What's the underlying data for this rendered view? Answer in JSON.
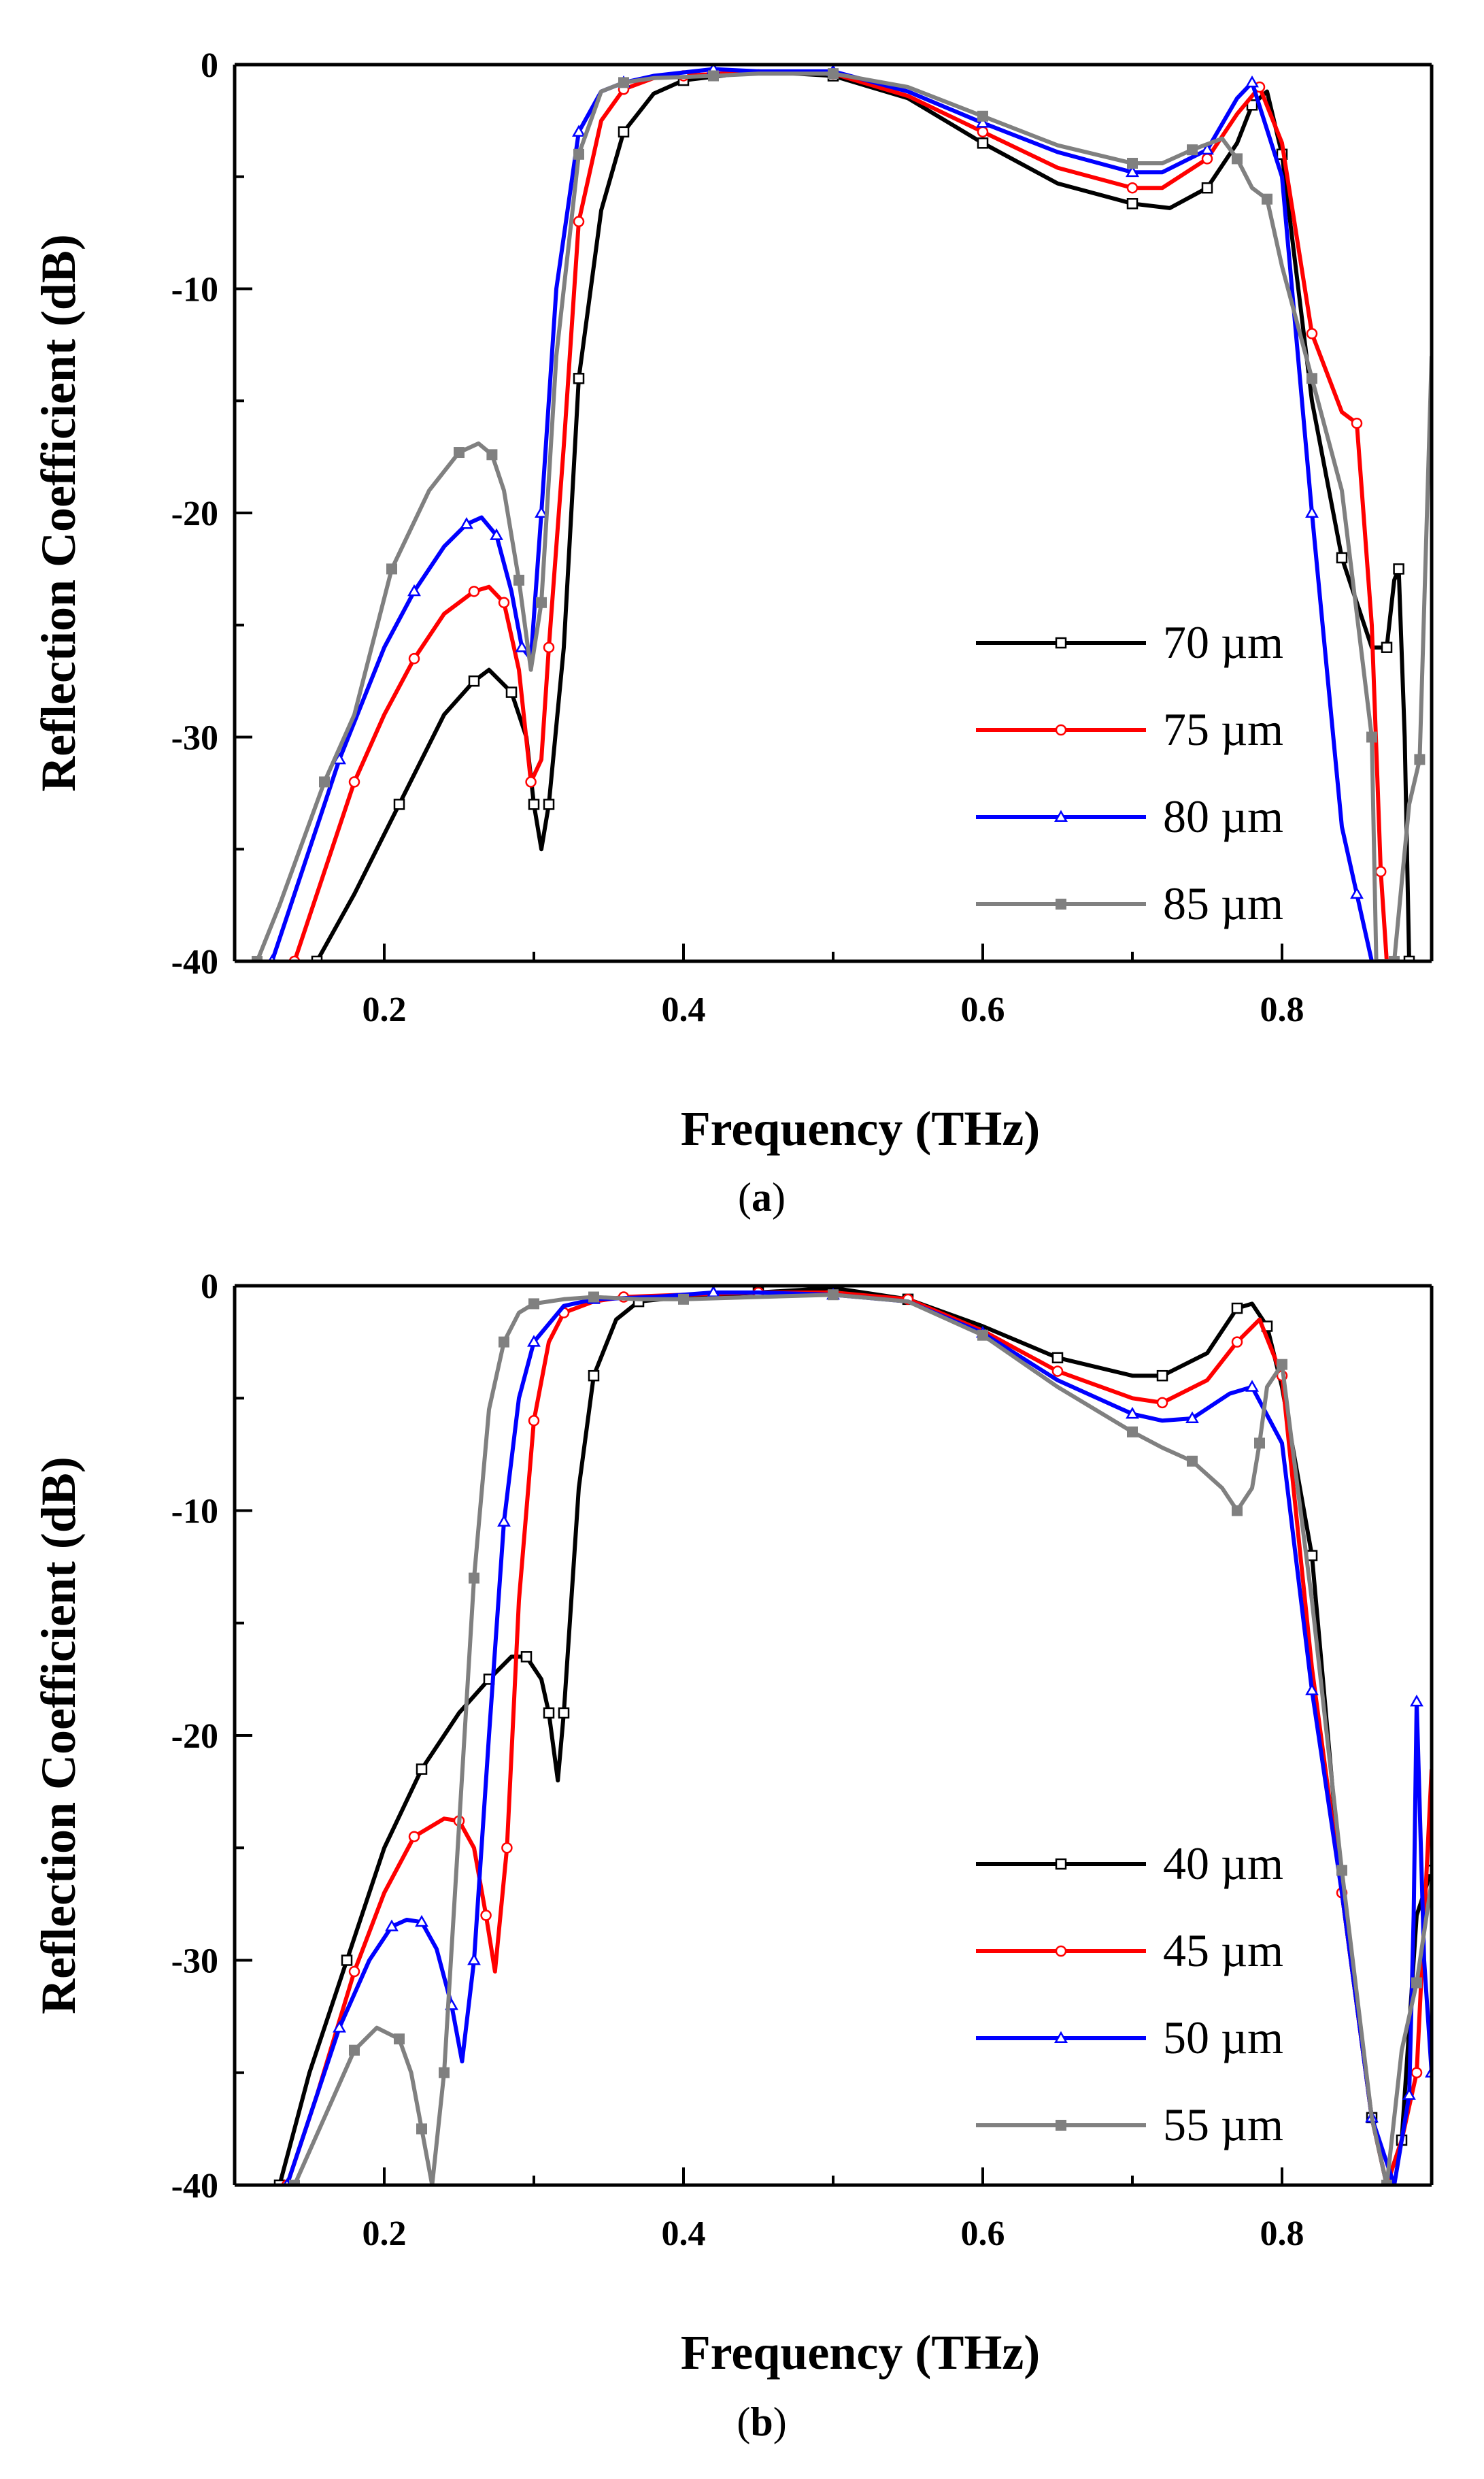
{
  "colors": {
    "black": "#000000",
    "red": "#ff0000",
    "blue": "#0000ff",
    "gray": "#808080"
  },
  "chart_data": [
    {
      "type": "line",
      "label_open": "(",
      "label_letter": "a",
      "label_close": ")",
      "xlabel": "Frequency (THz)",
      "ylabel": "Reflection Coefficient (dB)",
      "xlim": [
        0.1,
        0.9
      ],
      "ylim": [
        -40,
        0
      ],
      "xticks": [
        0.2,
        0.4,
        0.6,
        0.8
      ],
      "yticks": [
        0,
        -10,
        -20,
        -30,
        -40
      ],
      "grid": false,
      "legend_position": "bottom-right",
      "series": [
        {
          "name": "70 µm",
          "color": "#000000",
          "marker": "open-square",
          "x": [
            0.155,
            0.18,
            0.21,
            0.24,
            0.26,
            0.27,
            0.285,
            0.295,
            0.3,
            0.305,
            0.31,
            0.32,
            0.33,
            0.345,
            0.36,
            0.38,
            0.4,
            0.45,
            0.5,
            0.55,
            0.6,
            0.65,
            0.7,
            0.725,
            0.75,
            0.77,
            0.78,
            0.79,
            0.8,
            0.82,
            0.84,
            0.86,
            0.87,
            0.875,
            0.878,
            0.882,
            0.885
          ],
          "y": [
            -40,
            -37,
            -33,
            -29,
            -27.5,
            -27,
            -28,
            -30,
            -33,
            -35,
            -33,
            -26,
            -14,
            -6.5,
            -3,
            -1.3,
            -0.7,
            -0.3,
            -0.5,
            -1.5,
            -3.5,
            -5.3,
            -6.2,
            -6.4,
            -5.5,
            -3.5,
            -1.8,
            -1.2,
            -4,
            -15,
            -22,
            -26,
            -26,
            -23,
            -22.5,
            -30,
            -40
          ]
        },
        {
          "name": "75 µm",
          "color": "#ff0000",
          "marker": "open-circle",
          "x": [
            0.14,
            0.16,
            0.18,
            0.2,
            0.22,
            0.24,
            0.26,
            0.27,
            0.28,
            0.29,
            0.298,
            0.305,
            0.31,
            0.32,
            0.33,
            0.345,
            0.36,
            0.38,
            0.4,
            0.45,
            0.5,
            0.55,
            0.6,
            0.65,
            0.7,
            0.72,
            0.75,
            0.77,
            0.785,
            0.8,
            0.82,
            0.84,
            0.85,
            0.86,
            0.866,
            0.87
          ],
          "y": [
            -40,
            -36,
            -32,
            -29,
            -26.5,
            -24.5,
            -23.5,
            -23.3,
            -24,
            -27,
            -32,
            -31,
            -26,
            -17,
            -7,
            -2.5,
            -1.1,
            -0.6,
            -0.5,
            -0.3,
            -0.4,
            -1.4,
            -3,
            -4.6,
            -5.5,
            -5.5,
            -4.2,
            -2.2,
            -1,
            -3.5,
            -12,
            -15.5,
            -16,
            -25,
            -36,
            -40
          ]
        },
        {
          "name": "80 µm",
          "color": "#0000ff",
          "marker": "open-triangle",
          "x": [
            0.125,
            0.15,
            0.17,
            0.2,
            0.22,
            0.24,
            0.255,
            0.265,
            0.275,
            0.285,
            0.292,
            0.298,
            0.305,
            0.315,
            0.33,
            0.345,
            0.36,
            0.38,
            0.42,
            0.45,
            0.5,
            0.55,
            0.6,
            0.65,
            0.7,
            0.72,
            0.75,
            0.77,
            0.78,
            0.8,
            0.82,
            0.84,
            0.85,
            0.86
          ],
          "y": [
            -40,
            -35,
            -31,
            -26,
            -23.5,
            -21.5,
            -20.5,
            -20.2,
            -21,
            -23.5,
            -26,
            -26.5,
            -20,
            -10,
            -3,
            -1.2,
            -0.8,
            -0.5,
            -0.2,
            -0.3,
            -0.3,
            -1.2,
            -2.6,
            -3.9,
            -4.8,
            -4.8,
            -3.8,
            -1.5,
            -0.8,
            -5,
            -20,
            -34,
            -37,
            -40
          ]
        },
        {
          "name": "85 µm",
          "color": "#808080",
          "marker": "filled-square",
          "x": [
            0.115,
            0.13,
            0.16,
            0.18,
            0.205,
            0.23,
            0.25,
            0.263,
            0.272,
            0.28,
            0.29,
            0.298,
            0.305,
            0.315,
            0.33,
            0.345,
            0.36,
            0.38,
            0.42,
            0.45,
            0.5,
            0.55,
            0.6,
            0.65,
            0.7,
            0.72,
            0.74,
            0.76,
            0.77,
            0.78,
            0.79,
            0.8,
            0.82,
            0.84,
            0.86,
            0.863,
            0.875,
            0.885,
            0.892,
            0.9
          ],
          "y": [
            -40,
            -37.5,
            -32,
            -29,
            -22.5,
            -19,
            -17.3,
            -16.9,
            -17.4,
            -19,
            -23,
            -27,
            -24,
            -13,
            -4,
            -1.2,
            -0.8,
            -0.6,
            -0.5,
            -0.4,
            -0.4,
            -1,
            -2.3,
            -3.6,
            -4.4,
            -4.4,
            -3.8,
            -3.3,
            -4.2,
            -5.5,
            -6,
            -9,
            -14,
            -19,
            -30,
            -40,
            -40,
            -33,
            -31,
            -13
          ]
        }
      ]
    },
    {
      "type": "line",
      "label_open": "(",
      "label_letter": "b",
      "label_close": ")",
      "xlabel": "Frequency (THz)",
      "ylabel": "Reflection Coefficient (dB)",
      "xlim": [
        0.1,
        0.9
      ],
      "ylim": [
        -40,
        0
      ],
      "xticks": [
        0.2,
        0.4,
        0.6,
        0.8
      ],
      "yticks": [
        0,
        -10,
        -20,
        -30,
        -40
      ],
      "grid": false,
      "legend_position": "bottom-right",
      "series": [
        {
          "name": "40 µm",
          "color": "#000000",
          "marker": "open-square",
          "x": [
            0.13,
            0.15,
            0.175,
            0.2,
            0.225,
            0.25,
            0.27,
            0.285,
            0.295,
            0.305,
            0.31,
            0.316,
            0.32,
            0.33,
            0.34,
            0.355,
            0.37,
            0.4,
            0.45,
            0.5,
            0.55,
            0.6,
            0.65,
            0.7,
            0.72,
            0.75,
            0.77,
            0.78,
            0.79,
            0.8,
            0.82,
            0.84,
            0.86,
            0.87,
            0.88,
            0.89,
            0.9
          ],
          "y": [
            -40,
            -35,
            -30,
            -25,
            -21.5,
            -19,
            -17.5,
            -16.5,
            -16.5,
            -17.5,
            -19,
            -22,
            -19,
            -9,
            -4,
            -1.5,
            -0.7,
            -0.5,
            -0.3,
            -0.1,
            -0.6,
            -1.8,
            -3.2,
            -4,
            -4,
            -3,
            -1,
            -0.8,
            -1.8,
            -4.5,
            -12,
            -27,
            -37,
            -40,
            -38,
            -28,
            -26
          ]
        },
        {
          "name": "45 µm",
          "color": "#ff0000",
          "marker": "open-circle",
          "x": [
            0.135,
            0.155,
            0.18,
            0.2,
            0.22,
            0.24,
            0.25,
            0.26,
            0.268,
            0.274,
            0.282,
            0.29,
            0.3,
            0.31,
            0.32,
            0.34,
            0.36,
            0.4,
            0.45,
            0.5,
            0.55,
            0.6,
            0.65,
            0.7,
            0.72,
            0.75,
            0.77,
            0.785,
            0.8,
            0.82,
            0.84,
            0.86,
            0.87,
            0.88,
            0.89,
            0.9
          ],
          "y": [
            -40,
            -36,
            -30.5,
            -27,
            -24.5,
            -23.7,
            -23.8,
            -25,
            -28,
            -30.5,
            -25,
            -14,
            -6,
            -2.5,
            -1.2,
            -0.7,
            -0.5,
            -0.4,
            -0.3,
            -0.3,
            -0.6,
            -2,
            -3.8,
            -5,
            -5.2,
            -4.2,
            -2.5,
            -1.5,
            -4,
            -17,
            -27,
            -37,
            -40,
            -38,
            -35,
            -21.5
          ]
        },
        {
          "name": "50 µm",
          "color": "#0000ff",
          "marker": "open-triangle",
          "x": [
            0.135,
            0.15,
            0.17,
            0.19,
            0.205,
            0.215,
            0.225,
            0.235,
            0.245,
            0.252,
            0.26,
            0.27,
            0.28,
            0.29,
            0.3,
            0.32,
            0.34,
            0.38,
            0.42,
            0.45,
            0.5,
            0.55,
            0.6,
            0.65,
            0.7,
            0.72,
            0.74,
            0.765,
            0.78,
            0.8,
            0.82,
            0.84,
            0.86,
            0.875,
            0.885,
            0.888,
            0.89,
            0.895,
            0.9
          ],
          "y": [
            -40,
            -37,
            -33,
            -30,
            -28.5,
            -28.2,
            -28.3,
            -29.5,
            -32,
            -34.5,
            -30,
            -20,
            -10.5,
            -5,
            -2.5,
            -0.9,
            -0.6,
            -0.5,
            -0.3,
            -0.3,
            -0.4,
            -0.7,
            -2.1,
            -4.2,
            -5.7,
            -6,
            -5.9,
            -4.8,
            -4.5,
            -7,
            -18,
            -27,
            -37,
            -40,
            -36,
            -28,
            -18.5,
            -30,
            -35
          ]
        },
        {
          "name": "55 µm",
          "color": "#808080",
          "marker": "filled-square",
          "x": [
            0.14,
            0.16,
            0.18,
            0.195,
            0.21,
            0.218,
            0.225,
            0.232,
            0.24,
            0.25,
            0.26,
            0.27,
            0.28,
            0.29,
            0.3,
            0.32,
            0.34,
            0.37,
            0.4,
            0.45,
            0.5,
            0.55,
            0.6,
            0.65,
            0.7,
            0.72,
            0.74,
            0.76,
            0.77,
            0.78,
            0.785,
            0.79,
            0.8,
            0.82,
            0.84,
            0.86,
            0.87,
            0.88,
            0.89,
            0.9
          ],
          "y": [
            -40,
            -37,
            -34,
            -33,
            -33.5,
            -35,
            -37.5,
            -40,
            -35,
            -24,
            -13,
            -5.5,
            -2.5,
            -1.2,
            -0.8,
            -0.6,
            -0.5,
            -0.6,
            -0.6,
            -0.5,
            -0.4,
            -0.7,
            -2.2,
            -4.5,
            -6.5,
            -7.2,
            -7.8,
            -9,
            -10,
            -9,
            -7,
            -4.5,
            -3.5,
            -14,
            -26,
            -37,
            -40,
            -34,
            -31,
            -26.5
          ]
        }
      ]
    }
  ]
}
